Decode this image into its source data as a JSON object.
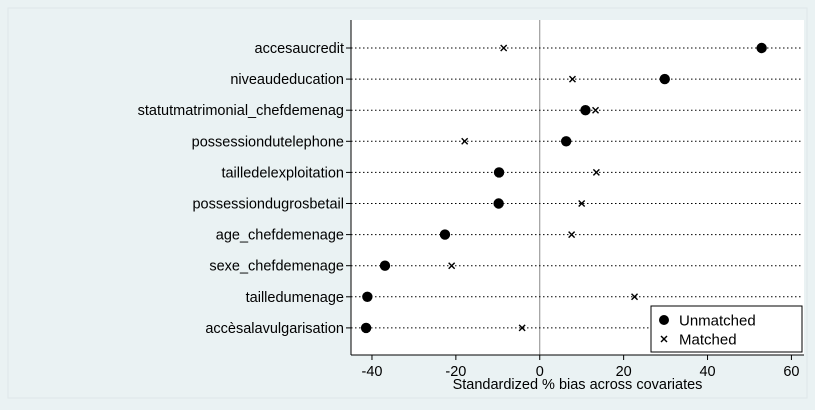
{
  "chart_data": {
    "type": "scatter",
    "title": "",
    "xlabel": "Standardized % bias across covariates",
    "ylabel": "",
    "xlim": [
      -45,
      63
    ],
    "xticks": [
      -40,
      -20,
      0,
      20,
      40,
      60
    ],
    "reference_line": 0,
    "grid": false,
    "legend_position": "bottom-right",
    "categories": [
      "accesaucredit",
      "niveaudeducation",
      "statutmatrimonial_chefdemenag",
      "possessiondutelephone",
      "tailledelexploitation",
      "possessiondugrosbetail",
      "age_chefdemenage",
      "sexe_chefdemenage",
      "tailledumenage",
      "accèsalavulgarisation"
    ],
    "series": [
      {
        "name": "Unmatched",
        "marker": "filled-circle",
        "values": [
          52.9,
          29.8,
          10.9,
          6.3,
          -9.7,
          -9.8,
          -22.6,
          -36.9,
          -41.1,
          -41.4
        ]
      },
      {
        "name": "Matched",
        "marker": "x",
        "values": [
          -8.6,
          7.8,
          13.3,
          -17.9,
          13.5,
          10.0,
          7.6,
          -21.0,
          22.6,
          -4.2
        ]
      }
    ],
    "colors": {
      "outer_background": "#eaf2f3",
      "plot_background": "#ffffff",
      "markers": "#000000"
    }
  }
}
